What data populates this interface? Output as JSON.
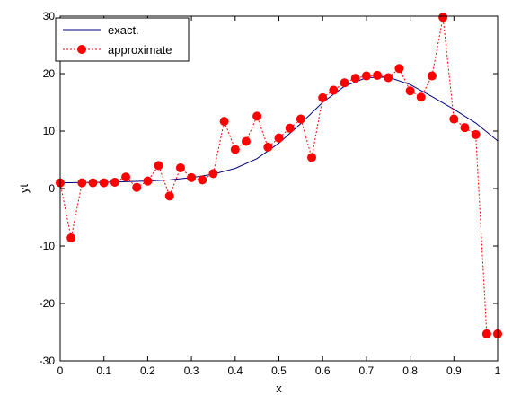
{
  "chart_data": {
    "type": "line",
    "xlabel": "x",
    "ylabel": "yt",
    "xlim": [
      0,
      1
    ],
    "ylim": [
      -30,
      30
    ],
    "xticks": [
      "0",
      "0.1",
      "0.2",
      "0.3",
      "0.4",
      "0.5",
      "0.6",
      "0.7",
      "0.8",
      "0.9",
      "1"
    ],
    "yticks": [
      "-30",
      "-20",
      "-10",
      "0",
      "10",
      "20",
      "30"
    ],
    "grid": false,
    "legend_position": "top-left",
    "series": [
      {
        "name": "exact.",
        "color": "#000080",
        "style": "solid",
        "x": [
          0,
          0.05,
          0.1,
          0.15,
          0.2,
          0.25,
          0.3,
          0.35,
          0.4,
          0.45,
          0.5,
          0.55,
          0.6,
          0.65,
          0.7,
          0.75,
          0.8,
          0.85,
          0.9,
          0.95,
          1
        ],
        "y": [
          1,
          1.05,
          1.1,
          1.2,
          1.3,
          1.5,
          1.9,
          2.5,
          3.5,
          5.2,
          7.9,
          11.3,
          15.0,
          17.8,
          19.3,
          19.4,
          18.1,
          16.0,
          13.8,
          11.4,
          8.3
        ]
      },
      {
        "name": "approximate",
        "color": "#ff0000",
        "style": "dotted-markers",
        "x": [
          0,
          0.025,
          0.05,
          0.075,
          0.1,
          0.125,
          0.15,
          0.175,
          0.2,
          0.225,
          0.25,
          0.275,
          0.3,
          0.325,
          0.35,
          0.375,
          0.4,
          0.425,
          0.45,
          0.475,
          0.5,
          0.525,
          0.55,
          0.575,
          0.6,
          0.625,
          0.65,
          0.675,
          0.7,
          0.725,
          0.75,
          0.775,
          0.8,
          0.825,
          0.85,
          0.875,
          0.9,
          0.925,
          0.95,
          0.975,
          1
        ],
        "y": [
          1,
          -8.6,
          1,
          1,
          1,
          1.1,
          2,
          0.2,
          1.3,
          4,
          -1.3,
          3.6,
          1.9,
          1.5,
          2.6,
          11.7,
          6.8,
          8.2,
          12.6,
          7.2,
          8.8,
          10.5,
          12.1,
          5.4,
          15.8,
          17.1,
          18.4,
          19.2,
          19.6,
          19.7,
          19.3,
          20.9,
          17.0,
          15.9,
          19.6,
          29.8,
          12.1,
          10.6,
          9.4,
          -25.3,
          -25.3
        ]
      }
    ]
  }
}
